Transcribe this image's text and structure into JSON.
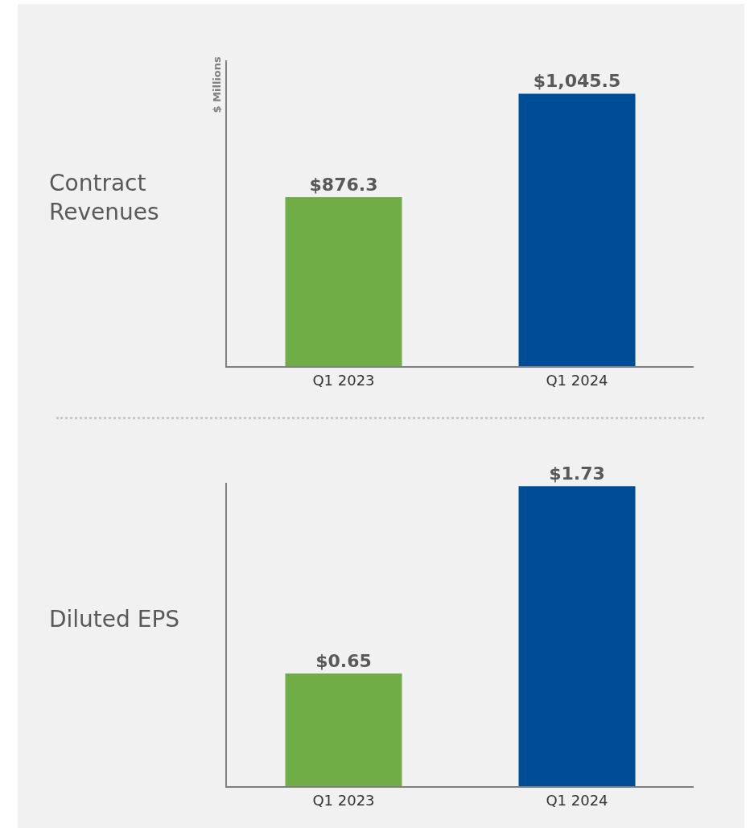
{
  "chart_data": [
    {
      "type": "bar",
      "title": "Contract Revenues",
      "ylabel": "$ Millions",
      "categories": [
        "Q1 2023",
        "Q1 2024"
      ],
      "values": [
        876.3,
        1045.5
      ],
      "colors": [
        "#70ad47",
        "#004c97"
      ],
      "value_labels": [
        "$876.3",
        "$1,045.5"
      ],
      "ylim": [
        600,
        1100
      ],
      "tick_labels": "x"
    },
    {
      "type": "bar",
      "title": "Diluted EPS",
      "categories": [
        "Q1 2023",
        "Q1 2024"
      ],
      "values": [
        0.65,
        1.73
      ],
      "colors": [
        "#70ad47",
        "#004c97"
      ],
      "value_labels": [
        "$0.65",
        "$1.73"
      ],
      "ylim": [
        0,
        1.75
      ],
      "tick_labels": "x"
    }
  ]
}
